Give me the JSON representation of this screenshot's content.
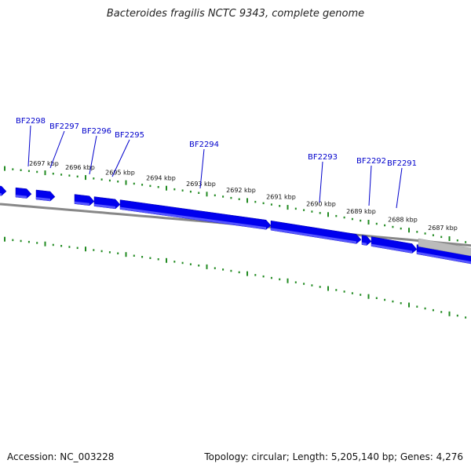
{
  "title": "Bacteroides fragilis NCTC 9343, complete genome",
  "accession": "Accession: NC_003228",
  "summary": "Topology: circular; Length: 5,205,140 bp; Genes: 4,276",
  "colors": {
    "gene_forward": "#0000ee",
    "gene_highlight": "#5555ff",
    "gene_other_strand": "#bbbbbb",
    "backbone": "#888888",
    "ticks": "#228b22",
    "gene_label": "#0000cc"
  },
  "scale_labels": [
    "2697 kbp",
    "2696 kbp",
    "2695 kbp",
    "2694 kbp",
    "2693 kbp",
    "2692 kbp",
    "2691 kbp",
    "2690 kbp",
    "2689 kbp",
    "2688 kbp",
    "2687 kbp"
  ],
  "gene_labels": [
    "BF2298",
    "BF2297",
    "BF2296",
    "BF2295",
    "BF2294",
    "BF2293",
    "BF2292",
    "BF2291"
  ]
}
